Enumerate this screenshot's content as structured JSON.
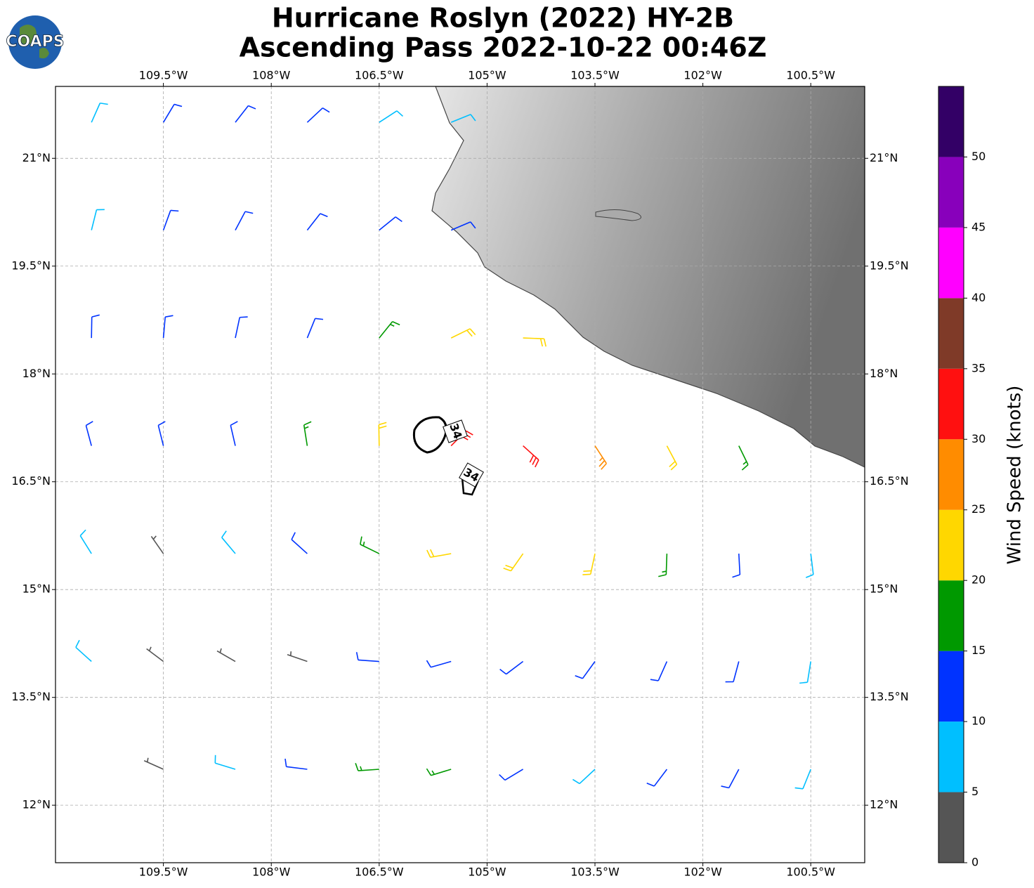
{
  "chart_data": {
    "type": "wind-barbs",
    "title": "Hurricane Roslyn (2022) HY-2B",
    "subtitle": "Ascending Pass 2022-10-22 00:46Z",
    "logo": "COAPS",
    "xlim": [
      -111,
      -99.75
    ],
    "xticks": [
      {
        "value": -109.5,
        "label": "109.5°W"
      },
      {
        "value": -108,
        "label": "108°W"
      },
      {
        "value": -106.5,
        "label": "106.5°W"
      },
      {
        "value": -105,
        "label": "105°W"
      },
      {
        "value": -103.5,
        "label": "103.5°W"
      },
      {
        "value": -102,
        "label": "102°W"
      },
      {
        "value": -100.5,
        "label": "100.5°W"
      }
    ],
    "ylim": [
      11.2,
      22
    ],
    "yticks": [
      {
        "value": 21,
        "label": "21°N"
      },
      {
        "value": 19.5,
        "label": "19.5°N"
      },
      {
        "value": 18,
        "label": "18°N"
      },
      {
        "value": 16.5,
        "label": "16.5°N"
      },
      {
        "value": 15,
        "label": "15°N"
      },
      {
        "value": 13.5,
        "label": "13.5°N"
      },
      {
        "value": 12,
        "label": "12°N"
      }
    ],
    "grid": true,
    "contour_labels": [
      "34",
      "34"
    ],
    "barbs": {
      "lon": [
        -110.5,
        -109.5,
        -108.5,
        -107.5,
        -106.5,
        -105.5,
        -110.5,
        -109.5,
        -108.5,
        -107.5,
        -106.5,
        -105.5,
        -110.5,
        -109.5,
        -108.5,
        -107.5,
        -106.5,
        -105.5,
        -104.5,
        -110.5,
        -109.5,
        -108.5,
        -107.5,
        -106.5,
        -105.5,
        -104.5,
        -103.5,
        -102.5,
        -101.5,
        -110.5,
        -109.5,
        -108.5,
        -107.5,
        -106.5,
        -105.5,
        -104.5,
        -103.5,
        -102.5,
        -101.5,
        -100.5,
        -110.5,
        -109.5,
        -108.5,
        -107.5,
        -106.5,
        -105.5,
        -104.5,
        -103.5,
        -102.5,
        -101.5,
        -100.5,
        -109.5,
        -108.5,
        -107.5,
        -106.5,
        -105.5,
        -104.5,
        -103.5,
        -102.5,
        -101.5,
        -100.5
      ],
      "lat": [
        21.5,
        21.5,
        21.5,
        21.5,
        21.5,
        21.5,
        20,
        20,
        20,
        20,
        20,
        20,
        18.5,
        18.5,
        18.5,
        18.5,
        18.5,
        18.5,
        18.5,
        17,
        17,
        17,
        17,
        17,
        17,
        17,
        17,
        17,
        17,
        15.5,
        15.5,
        15.5,
        15.5,
        15.5,
        15.5,
        15.5,
        15.5,
        15.5,
        15.5,
        15.5,
        14,
        14,
        14,
        14,
        14,
        14,
        14,
        14,
        14,
        14,
        14,
        12.5,
        12.5,
        12.5,
        12.5,
        12.5,
        12.5,
        12.5,
        12.5,
        12.5,
        12.5
      ],
      "speed": [
        8,
        12,
        12,
        12,
        8,
        8,
        8,
        12,
        12,
        12,
        12,
        12,
        12,
        12,
        12,
        12,
        17,
        22,
        22,
        12,
        12,
        12,
        17,
        22,
        32,
        32,
        27,
        22,
        17,
        8,
        3,
        8,
        12,
        17,
        22,
        22,
        22,
        17,
        12,
        8,
        8,
        3,
        3,
        3,
        12,
        12,
        12,
        12,
        12,
        12,
        8,
        3,
        8,
        12,
        17,
        17,
        12,
        8,
        12,
        12,
        8
      ],
      "direction": [
        24,
        31,
        38,
        47,
        57,
        68,
        14,
        20,
        28,
        38,
        51,
        67,
        1,
        5,
        12,
        22,
        39,
        64,
        92,
        345,
        346,
        347,
        351,
        359,
        45,
        132,
        147,
        152,
        154,
        328,
        325,
        320,
        312,
        296,
        260,
        215,
        192,
        182,
        177,
        173,
        312,
        307,
        300,
        289,
        274,
        254,
        233,
        216,
        204,
        195,
        189,
        294,
        287,
        277,
        266,
        253,
        239,
        227,
        217,
        208,
        202
      ]
    },
    "colorbar": {
      "label": "Wind Speed (knots)",
      "bounds": [
        0,
        5,
        10,
        15,
        20,
        25,
        30,
        35,
        40,
        45,
        50,
        55
      ],
      "colors": [
        "#555555",
        "#00bfff",
        "#0033ff",
        "#009900",
        "#ffd700",
        "#ff8c00",
        "#ff1010",
        "#7f3a28",
        "#ff00ff",
        "#8800bb",
        "#330066"
      ],
      "ticks": [
        0,
        5,
        10,
        15,
        20,
        25,
        30,
        35,
        40,
        45,
        50
      ]
    }
  }
}
